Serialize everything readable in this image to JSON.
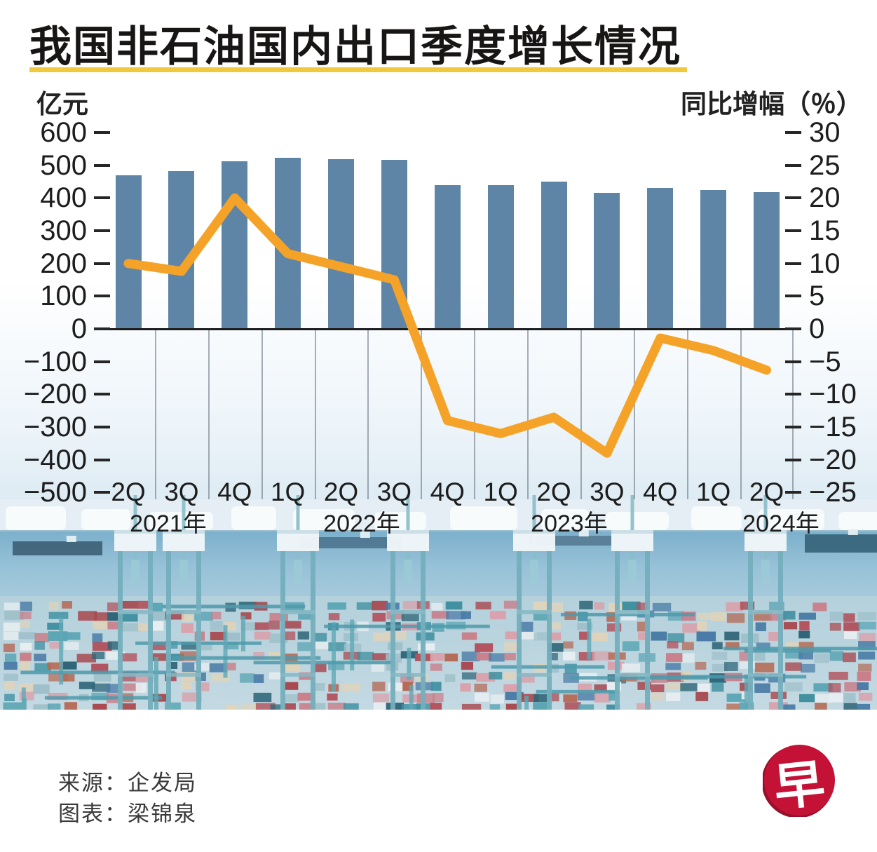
{
  "title": "我国非石油国内出口季度增长情况",
  "source": {
    "line1": "来源：企发局",
    "line2": "图表：梁锦泉"
  },
  "logo": {
    "char": "早"
  },
  "colors": {
    "bar": "#5e84a6",
    "line": "#f5a328",
    "title_underline": "#f0c93c",
    "logo_red": "#c31235",
    "logo_red_dark": "#97102b"
  },
  "chart_data": {
    "type": "bar+line",
    "categories": [
      "2Q",
      "3Q",
      "4Q",
      "1Q",
      "2Q",
      "3Q",
      "4Q",
      "1Q",
      "2Q",
      "3Q",
      "4Q",
      "1Q",
      "2Q"
    ],
    "years": [
      "2021年",
      "2022年",
      "2023年",
      "2024年"
    ],
    "series": [
      {
        "name": "亿元",
        "type": "bar",
        "axis": "left",
        "values": [
          470,
          483,
          512,
          522,
          518,
          516,
          440,
          440,
          449,
          415,
          430,
          424,
          418
        ]
      },
      {
        "name": "同比增幅（％）",
        "type": "line",
        "axis": "right",
        "values": [
          10,
          8.8,
          20,
          11.5,
          9.5,
          7.5,
          -14,
          -16,
          -13.5,
          -19,
          -1.4,
          -3.3,
          -6.3
        ]
      }
    ],
    "left_axis": {
      "label": "亿元",
      "ticks": [
        600,
        500,
        400,
        300,
        200,
        100,
        0,
        -100,
        -200,
        -300,
        -400,
        -500
      ],
      "range": [
        -500,
        600
      ]
    },
    "right_axis": {
      "label": "同比增幅（％）",
      "ticks": [
        30,
        25,
        20,
        15,
        10,
        5,
        0,
        -5,
        -10,
        -15,
        -20,
        -25
      ],
      "range": [
        -25,
        30
      ]
    },
    "grid": "vertical-lines-below-zero-only",
    "legend": "none"
  }
}
